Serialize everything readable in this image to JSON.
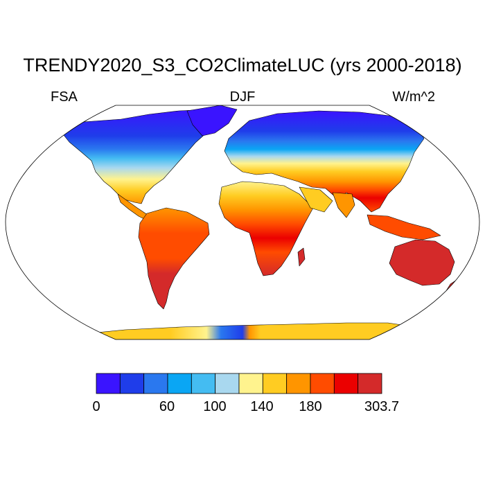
{
  "title": "TRENDY2020_S3_CO2ClimateLUC (yrs 2000-2018)",
  "subtitle_left": "FSA",
  "subtitle_center": "DJF",
  "subtitle_right": "W/m^2",
  "colorbar": {
    "colors": [
      "#3a14ff",
      "#1f3dea",
      "#2a78ef",
      "#0aa6f4",
      "#44bcf2",
      "#a9d8ef",
      "#fff38e",
      "#ffcc22",
      "#ff9500",
      "#ff4c00",
      "#eb0000",
      "#d42a2a"
    ],
    "tick_labels": [
      "0",
      "60",
      "100",
      "140",
      "180",
      "303.7"
    ]
  },
  "colors": {
    "land_outline": "#000000",
    "map_frame": "#000000",
    "background": "#ffffff"
  }
}
